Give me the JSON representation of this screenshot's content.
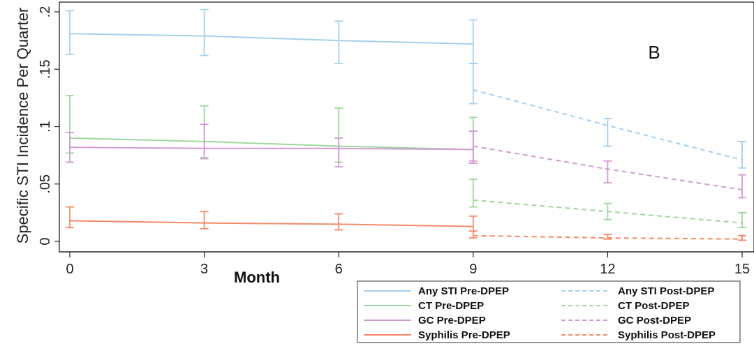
{
  "chart_data": {
    "type": "line",
    "panel_label": "B",
    "xlabel": "Month",
    "ylabel": "Specific STI Incidence Per Quarter",
    "x_ticks": [
      0,
      3,
      6,
      9,
      12,
      15
    ],
    "y_ticks": [
      0,
      0.05,
      0.1,
      0.15,
      0.2
    ],
    "y_tick_labels": [
      "0",
      ".05",
      ".1",
      ".15",
      ".2"
    ],
    "xlim": [
      0,
      15
    ],
    "ylim": [
      0,
      0.21
    ],
    "colors": {
      "any": "#a7d0ea",
      "ct": "#9ed89e",
      "gc": "#d39bd3",
      "syph": "#f58a6a"
    },
    "series": [
      {
        "name": "Any STI Pre-DPEP",
        "key": "any",
        "period": "pre",
        "color": "#a7d0ea",
        "dashed": false,
        "x": [
          0,
          3,
          6,
          9
        ],
        "y": [
          0.181,
          0.179,
          0.175,
          0.172
        ],
        "lower": [
          0.163,
          0.162,
          0.155,
          0.155
        ],
        "upper": [
          0.201,
          0.202,
          0.192,
          0.193
        ]
      },
      {
        "name": "CT Pre-DPEP",
        "key": "ct",
        "period": "pre",
        "color": "#9ed89e",
        "dashed": false,
        "x": [
          0,
          3,
          6,
          9
        ],
        "y": [
          0.09,
          0.087,
          0.083,
          0.08
        ],
        "lower": [
          0.077,
          0.073,
          0.069,
          0.068
        ],
        "upper": [
          0.127,
          0.118,
          0.116,
          0.108
        ]
      },
      {
        "name": "GC Pre-DPEP",
        "key": "gc",
        "period": "pre",
        "color": "#d39bd3",
        "dashed": false,
        "x": [
          0,
          3,
          6,
          9
        ],
        "y": [
          0.082,
          0.081,
          0.081,
          0.08
        ],
        "lower": [
          0.069,
          0.072,
          0.065,
          0.07
        ],
        "upper": [
          0.095,
          0.102,
          0.09,
          0.096
        ]
      },
      {
        "name": "Syphilis Pre-DPEP",
        "key": "syph",
        "period": "pre",
        "color": "#f58a6a",
        "dashed": false,
        "x": [
          0,
          3,
          6,
          9
        ],
        "y": [
          0.018,
          0.016,
          0.015,
          0.013
        ],
        "lower": [
          0.012,
          0.011,
          0.01,
          0.009
        ],
        "upper": [
          0.03,
          0.026,
          0.024,
          0.022
        ]
      },
      {
        "name": "Any STI Post-DPEP",
        "key": "any",
        "period": "post",
        "color": "#a7d0ea",
        "dashed": true,
        "x": [
          9,
          12,
          15
        ],
        "y": [
          0.132,
          0.101,
          0.071
        ],
        "lower": [
          0.12,
          0.083,
          0.064
        ],
        "upper": [
          0.155,
          0.107,
          0.087
        ]
      },
      {
        "name": "CT Post-DPEP",
        "key": "ct",
        "period": "post",
        "color": "#9ed89e",
        "dashed": true,
        "x": [
          9,
          12,
          15
        ],
        "y": [
          0.036,
          0.026,
          0.016
        ],
        "lower": [
          0.03,
          0.019,
          0.012
        ],
        "upper": [
          0.054,
          0.033,
          0.025
        ]
      },
      {
        "name": "GC Post-DPEP",
        "key": "gc",
        "period": "post",
        "color": "#d39bd3",
        "dashed": true,
        "x": [
          9,
          12,
          15
        ],
        "y": [
          0.083,
          0.063,
          0.045
        ],
        "lower": [
          0.068,
          0.051,
          0.038
        ],
        "upper": [
          0.096,
          0.07,
          0.058
        ]
      },
      {
        "name": "Syphilis Post-DPEP",
        "key": "syph",
        "period": "post",
        "color": "#f58a6a",
        "dashed": true,
        "x": [
          9,
          12,
          15
        ],
        "y": [
          0.005,
          0.003,
          0.002
        ],
        "lower": [
          0.003,
          0.002,
          0.001
        ],
        "upper": [
          0.009,
          0.006,
          0.005
        ]
      }
    ],
    "legend": {
      "placement": "bottom-right",
      "left_column": [
        "Any STI Pre-DPEP",
        "CT Pre-DPEP",
        "GC Pre-DPEP",
        "Syphilis Pre-DPEP"
      ],
      "right_column": [
        "Any STI Post-DPEP",
        "CT Post-DPEP",
        "GC Post-DPEP",
        "Syphilis Post-DPEP"
      ]
    }
  }
}
